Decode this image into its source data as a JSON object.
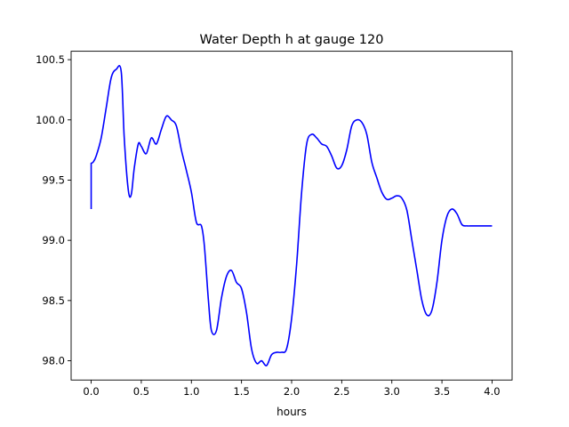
{
  "chart_data": {
    "type": "line",
    "title": "Water Depth h at gauge 120",
    "xlabel": "hours",
    "ylabel": "",
    "xlim": [
      -0.2,
      4.2
    ],
    "ylim": [
      97.84,
      100.57
    ],
    "xticks": [
      0.0,
      0.5,
      1.0,
      1.5,
      2.0,
      2.5,
      3.0,
      3.5,
      4.0
    ],
    "xtick_labels": [
      "0.0",
      "0.5",
      "1.0",
      "1.5",
      "2.0",
      "2.5",
      "3.0",
      "3.5",
      "4.0"
    ],
    "yticks": [
      98.0,
      98.5,
      99.0,
      99.5,
      100.0,
      100.5
    ],
    "ytick_labels": [
      "98.0",
      "98.5",
      "99.0",
      "99.5",
      "100.0",
      "100.5"
    ],
    "grid": false,
    "series": [
      {
        "color": "#0000ff",
        "x": [
          0.0,
          0.0,
          0.02,
          0.05,
          0.1,
          0.15,
          0.2,
          0.25,
          0.3,
          0.33,
          0.37,
          0.4,
          0.43,
          0.47,
          0.5,
          0.55,
          0.6,
          0.65,
          0.7,
          0.75,
          0.8,
          0.85,
          0.9,
          0.95,
          1.0,
          1.05,
          1.1,
          1.13,
          1.17,
          1.2,
          1.25,
          1.3,
          1.35,
          1.4,
          1.45,
          1.5,
          1.55,
          1.6,
          1.65,
          1.7,
          1.75,
          1.8,
          1.85,
          1.9,
          1.95,
          2.0,
          2.05,
          2.1,
          2.15,
          2.2,
          2.25,
          2.3,
          2.35,
          2.4,
          2.45,
          2.5,
          2.55,
          2.6,
          2.65,
          2.7,
          2.75,
          2.8,
          2.85,
          2.9,
          2.95,
          3.0,
          3.05,
          3.1,
          3.15,
          3.2,
          3.25,
          3.3,
          3.35,
          3.4,
          3.45,
          3.5,
          3.55,
          3.6,
          3.65,
          3.7,
          3.75,
          3.8,
          3.85,
          3.9,
          3.95,
          4.0
        ],
        "y": [
          99.26,
          99.64,
          99.65,
          99.7,
          99.85,
          100.1,
          100.35,
          100.42,
          100.4,
          99.85,
          99.42,
          99.38,
          99.6,
          99.8,
          99.78,
          99.72,
          99.85,
          99.8,
          99.92,
          100.03,
          100.0,
          99.95,
          99.75,
          99.58,
          99.4,
          99.15,
          99.12,
          98.95,
          98.5,
          98.25,
          98.25,
          98.52,
          98.7,
          98.75,
          98.65,
          98.6,
          98.4,
          98.1,
          97.98,
          98.0,
          97.96,
          98.05,
          98.07,
          98.07,
          98.1,
          98.35,
          98.8,
          99.4,
          99.8,
          99.88,
          99.85,
          99.8,
          99.78,
          99.7,
          99.6,
          99.62,
          99.75,
          99.95,
          100.0,
          99.98,
          99.88,
          99.65,
          99.52,
          99.4,
          99.34,
          99.35,
          99.37,
          99.35,
          99.25,
          99.0,
          98.75,
          98.5,
          98.38,
          98.42,
          98.65,
          99.0,
          99.2,
          99.26,
          99.22,
          99.13,
          99.12,
          99.12,
          99.12,
          99.12,
          99.12,
          99.12
        ]
      }
    ]
  }
}
